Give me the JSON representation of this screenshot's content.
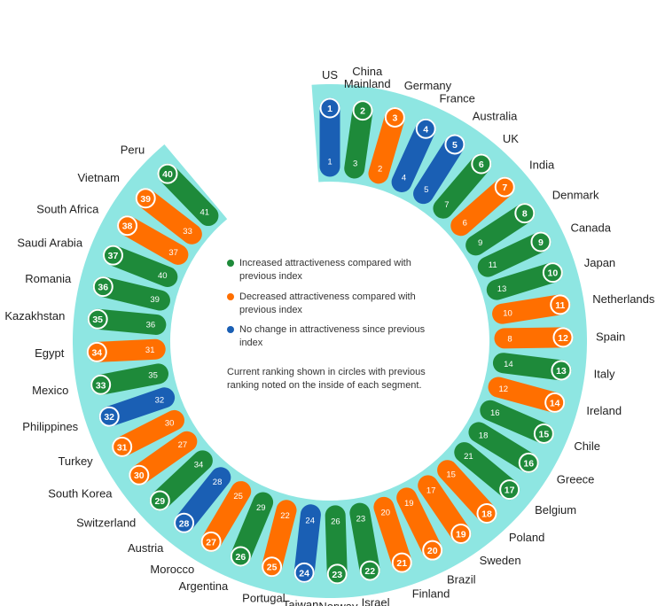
{
  "chart_data": {
    "type": "radial-bar",
    "colors": {
      "increased": "#1e8a3a",
      "decreased": "#ff6f00",
      "no_change": "#1a5fb4",
      "backdrop": "#8ee6e2"
    },
    "legend": [
      {
        "status": "increased",
        "text": "Increased attractiveness compared with previous index"
      },
      {
        "status": "decreased",
        "text": "Decreased attractiveness compared with previous index"
      },
      {
        "status": "no_change",
        "text": "No change in attractiveness since previous index"
      }
    ],
    "note": "Current ranking shown in circles with previous ranking noted on the inside of each segment.",
    "items": [
      {
        "rank": 1,
        "country": "US",
        "previous": 1,
        "status": "no_change"
      },
      {
        "rank": 2,
        "country": "China Mainland",
        "previous": 3,
        "status": "increased"
      },
      {
        "rank": 3,
        "country": "Germany",
        "previous": 2,
        "status": "decreased"
      },
      {
        "rank": 4,
        "country": "France",
        "previous": 4,
        "status": "no_change"
      },
      {
        "rank": 5,
        "country": "Australia",
        "previous": 5,
        "status": "no_change"
      },
      {
        "rank": 6,
        "country": "UK",
        "previous": 7,
        "status": "increased"
      },
      {
        "rank": 7,
        "country": "India",
        "previous": 6,
        "status": "decreased"
      },
      {
        "rank": 8,
        "country": "Denmark",
        "previous": 9,
        "status": "increased"
      },
      {
        "rank": 9,
        "country": "Canada",
        "previous": 11,
        "status": "increased"
      },
      {
        "rank": 10,
        "country": "Japan",
        "previous": 13,
        "status": "increased"
      },
      {
        "rank": 11,
        "country": "Netherlands",
        "previous": 10,
        "status": "decreased"
      },
      {
        "rank": 12,
        "country": "Spain",
        "previous": 8,
        "status": "decreased"
      },
      {
        "rank": 13,
        "country": "Italy",
        "previous": 14,
        "status": "increased"
      },
      {
        "rank": 14,
        "country": "Ireland",
        "previous": 12,
        "status": "decreased"
      },
      {
        "rank": 15,
        "country": "Chile",
        "previous": 16,
        "status": "increased"
      },
      {
        "rank": 16,
        "country": "Greece",
        "previous": 18,
        "status": "increased"
      },
      {
        "rank": 17,
        "country": "Belgium",
        "previous": 21,
        "status": "increased"
      },
      {
        "rank": 18,
        "country": "Poland",
        "previous": 15,
        "status": "decreased"
      },
      {
        "rank": 19,
        "country": "Sweden",
        "previous": 17,
        "status": "decreased"
      },
      {
        "rank": 20,
        "country": "Brazil",
        "previous": 19,
        "status": "decreased"
      },
      {
        "rank": 21,
        "country": "Finland",
        "previous": 20,
        "status": "decreased"
      },
      {
        "rank": 22,
        "country": "Israel",
        "previous": 23,
        "status": "increased"
      },
      {
        "rank": 23,
        "country": "Norway",
        "previous": 26,
        "status": "increased"
      },
      {
        "rank": 24,
        "country": "Taiwan",
        "previous": 24,
        "status": "no_change"
      },
      {
        "rank": 25,
        "country": "Portugal",
        "previous": 22,
        "status": "decreased"
      },
      {
        "rank": 26,
        "country": "Argentina",
        "previous": 29,
        "status": "increased"
      },
      {
        "rank": 27,
        "country": "Morocco",
        "previous": 25,
        "status": "decreased"
      },
      {
        "rank": 28,
        "country": "Austria",
        "previous": 28,
        "status": "no_change"
      },
      {
        "rank": 29,
        "country": "Switzerland",
        "previous": 34,
        "status": "increased"
      },
      {
        "rank": 30,
        "country": "South Korea",
        "previous": 27,
        "status": "decreased"
      },
      {
        "rank": 31,
        "country": "Turkey",
        "previous": 30,
        "status": "decreased"
      },
      {
        "rank": 32,
        "country": "Philippines",
        "previous": 32,
        "status": "no_change"
      },
      {
        "rank": 33,
        "country": "Mexico",
        "previous": 35,
        "status": "increased"
      },
      {
        "rank": 34,
        "country": "Egypt",
        "previous": 31,
        "status": "decreased"
      },
      {
        "rank": 35,
        "country": "Kazakhstan",
        "previous": 36,
        "status": "increased"
      },
      {
        "rank": 36,
        "country": "Romania",
        "previous": 39,
        "status": "increased"
      },
      {
        "rank": 37,
        "country": "Saudi Arabia",
        "previous": 40,
        "status": "increased"
      },
      {
        "rank": 38,
        "country": "South Africa",
        "previous": 37,
        "status": "decreased"
      },
      {
        "rank": 39,
        "country": "Vietnam",
        "previous": 33,
        "status": "decreased"
      },
      {
        "rank": 40,
        "country": "Peru",
        "previous": 41,
        "status": "increased"
      }
    ]
  }
}
